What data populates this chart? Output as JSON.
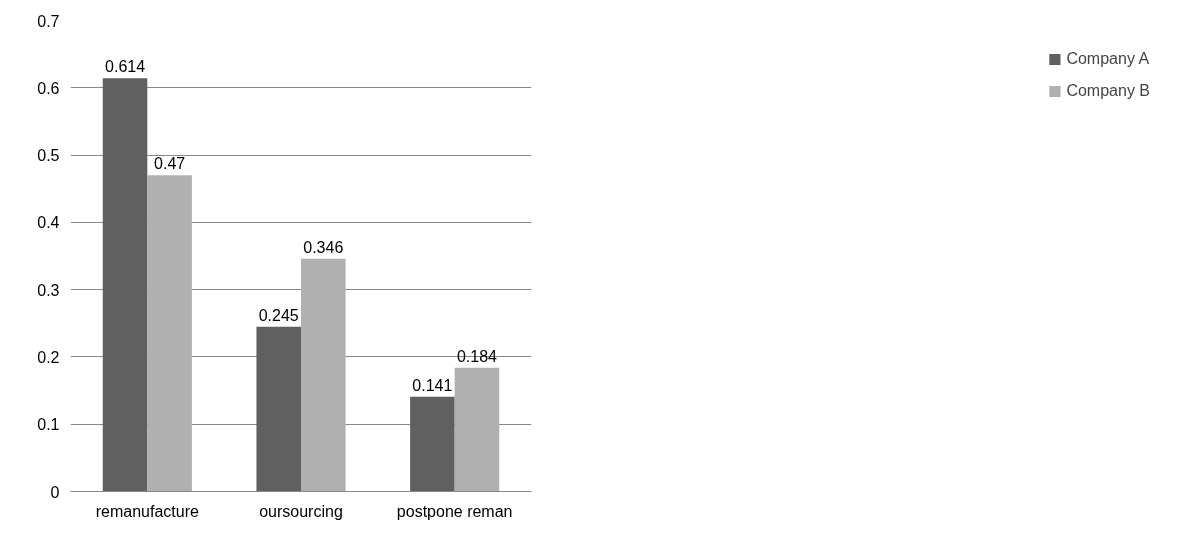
{
  "chart_data": {
    "type": "bar",
    "categories": [
      "remanufacture",
      "oursourcing",
      "postpone reman"
    ],
    "series": [
      {
        "name": "Company A",
        "color": "#606060",
        "values": [
          0.614,
          0.245,
          0.141
        ]
      },
      {
        "name": "Company B",
        "color": "#b0b0b0",
        "values": [
          0.47,
          0.346,
          0.184
        ]
      }
    ],
    "ylim": [
      0,
      0.7
    ],
    "yticks": [
      {
        "value": 0,
        "label": "0"
      },
      0.1,
      0.2,
      0.3,
      0.4,
      0.5,
      0.6,
      0.7
    ],
    "grid": "y",
    "legend": "right",
    "data_labels": true
  }
}
